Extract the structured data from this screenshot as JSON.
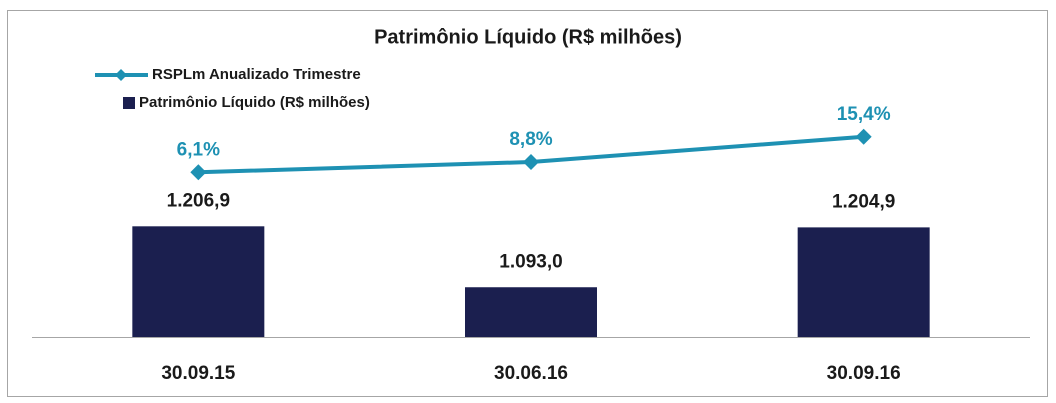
{
  "chart_data": {
    "type": "bar-line",
    "title": "Patrimônio Líquido (R$ milhões)",
    "categories": [
      "30.09.15",
      "30.06.16",
      "30.09.16"
    ],
    "series": [
      {
        "name": "RSPLm Anualizado Trimestre",
        "type": "line",
        "axis": "y2",
        "color": "#1e91b3",
        "values": [
          6.1,
          8.8,
          15.4
        ],
        "value_labels": [
          "6,1%",
          "8,8%",
          "15,4%"
        ]
      },
      {
        "name": "Patrimônio Líquido (R$ milhões)",
        "type": "bar",
        "color": "#1b1f4f",
        "values": [
          1206.9,
          1093.0,
          1204.9
        ],
        "value_labels": [
          "1.206,9",
          "1.093,0",
          "1.204,9"
        ]
      }
    ],
    "ylim": [
      1000,
      1500
    ],
    "y2lim": [
      -37,
      33
    ],
    "legend": "top-left"
  }
}
